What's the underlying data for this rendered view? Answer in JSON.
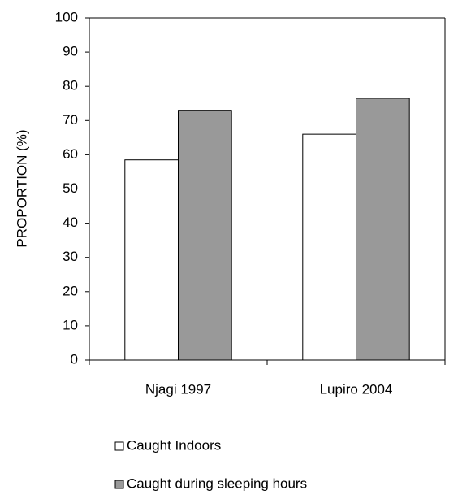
{
  "chart_data": {
    "type": "bar",
    "ylabel": "PROPORTION (%)",
    "categories": [
      "Njagi 1997",
      "Lupiro 2004"
    ],
    "series": [
      {
        "name": "Caught Indoors",
        "color": "#ffffff",
        "values": [
          58.5,
          66
        ]
      },
      {
        "name": "Caught during sleeping hours",
        "color": "#999999",
        "values": [
          73,
          76.5
        ]
      }
    ],
    "ylim": [
      0,
      100
    ],
    "yticks": [
      0,
      10,
      20,
      30,
      40,
      50,
      60,
      70,
      80,
      90,
      100
    ],
    "legend": "bottom"
  }
}
